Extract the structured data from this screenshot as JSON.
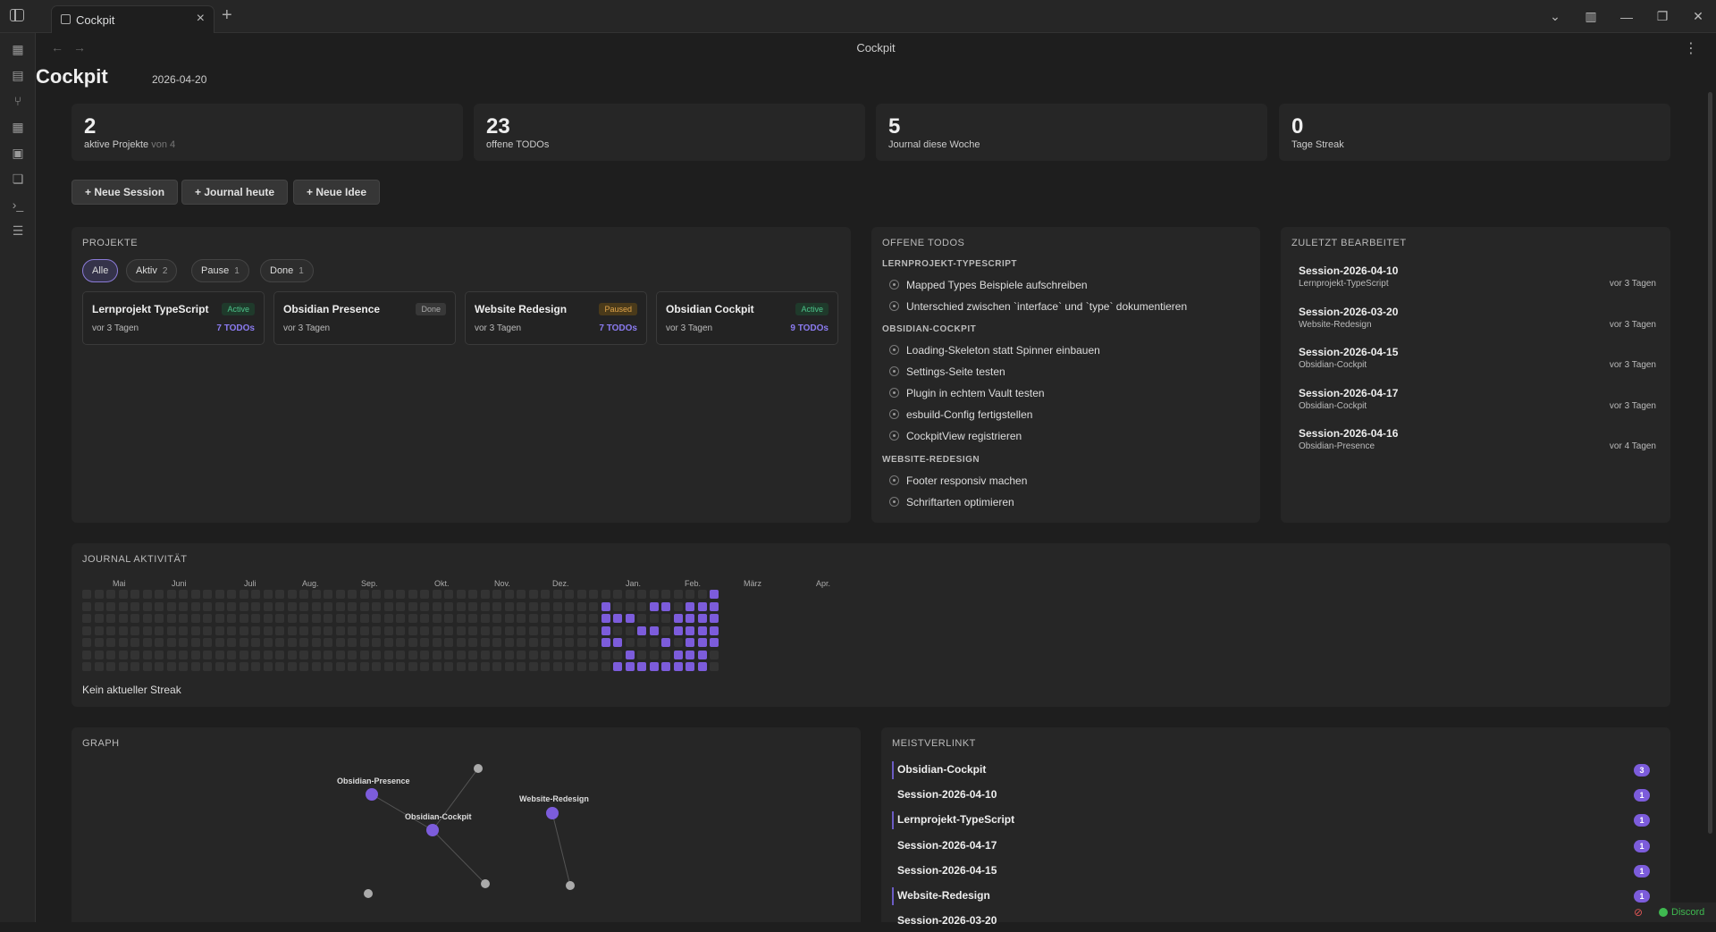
{
  "tab": {
    "label": "Cockpit"
  },
  "view": {
    "title": "Cockpit"
  },
  "page": {
    "title": "Cockpit",
    "date": "2026-04-20"
  },
  "stats": [
    {
      "value": "2",
      "label": "aktive Projekte",
      "sub": "von 4"
    },
    {
      "value": "23",
      "label": "offene TODOs",
      "sub": ""
    },
    {
      "value": "5",
      "label": "Journal diese Woche",
      "sub": ""
    },
    {
      "value": "0",
      "label": "Tage Streak",
      "sub": ""
    }
  ],
  "actions": {
    "new_session": "+ Neue Session",
    "journal_today": "+ Journal heute",
    "new_idea": "+ Neue Idee"
  },
  "projects": {
    "heading": "Projekte",
    "filters": [
      {
        "label": "Alle",
        "count": ""
      },
      {
        "label": "Aktiv",
        "count": "2"
      },
      {
        "label": "Pause",
        "count": "1"
      },
      {
        "label": "Done",
        "count": "1"
      }
    ],
    "items": [
      {
        "name": "Lernprojekt TypeScript",
        "status": "Active",
        "time": "vor 3 Tagen",
        "todos": "7 TODOs"
      },
      {
        "name": "Obsidian Presence",
        "status": "Done",
        "time": "vor 3 Tagen",
        "todos": ""
      },
      {
        "name": "Website Redesign",
        "status": "Paused",
        "time": "vor 3 Tagen",
        "todos": "7 TODOs"
      },
      {
        "name": "Obsidian Cockpit",
        "status": "Active",
        "time": "vor 3 Tagen",
        "todos": "9 TODOs"
      }
    ]
  },
  "todos": {
    "heading": "Offene TODOs",
    "groups": [
      {
        "name": "LERNPROJEKT-TYPESCRIPT",
        "items": [
          "Mapped Types Beispiele aufschreiben",
          "Unterschied zwischen `interface` und `type` dokumentieren"
        ]
      },
      {
        "name": "OBSIDIAN-COCKPIT",
        "items": [
          "Loading-Skeleton statt Spinner einbauen",
          "Settings-Seite testen",
          "Plugin in echtem Vault testen",
          "esbuild-Config fertigstellen",
          "CockpitView registrieren"
        ]
      },
      {
        "name": "WEBSITE-REDESIGN",
        "items": [
          "Footer responsiv machen",
          "Schriftarten optimieren"
        ]
      }
    ]
  },
  "recent": {
    "heading": "Zuletzt bearbeitet",
    "items": [
      {
        "name": "Session-2026-04-10",
        "project": "Lernprojekt-TypeScript",
        "time": "vor 3 Tagen"
      },
      {
        "name": "Session-2026-03-20",
        "project": "Website-Redesign",
        "time": "vor 3 Tagen"
      },
      {
        "name": "Session-2026-04-15",
        "project": "Obsidian-Cockpit",
        "time": "vor 3 Tagen"
      },
      {
        "name": "Session-2026-04-17",
        "project": "Obsidian-Cockpit",
        "time": "vor 3 Tagen"
      },
      {
        "name": "Session-2026-04-16",
        "project": "Obsidian-Presence",
        "time": "vor 4 Tagen"
      }
    ]
  },
  "journal": {
    "heading": "Journal Aktivität",
    "months": [
      "Mai",
      "Juni",
      "Juli",
      "Aug.",
      "Sep.",
      "Okt.",
      "Nov.",
      "Dez.",
      "Jan.",
      "Feb.",
      "März",
      "Apr."
    ],
    "streak_text": "Kein aktueller Streak",
    "active_cells": [
      [
        49,
        1
      ],
      [
        49,
        2
      ],
      [
        49,
        3
      ],
      [
        49,
        4
      ],
      [
        50,
        6
      ],
      [
        50,
        4
      ],
      [
        50,
        2
      ],
      [
        51,
        6
      ],
      [
        51,
        5
      ],
      [
        51,
        2
      ],
      [
        52,
        6
      ],
      [
        52,
        3
      ],
      [
        53,
        6
      ],
      [
        53,
        1
      ],
      [
        53,
        3
      ],
      [
        54,
        6
      ],
      [
        54,
        1
      ],
      [
        54,
        4
      ],
      [
        55,
        6
      ],
      [
        55,
        2
      ],
      [
        55,
        3
      ],
      [
        55,
        5
      ],
      [
        56,
        6
      ],
      [
        56,
        1
      ],
      [
        56,
        2
      ],
      [
        56,
        3
      ],
      [
        56,
        4
      ],
      [
        56,
        5
      ],
      [
        57,
        6
      ],
      [
        57,
        1
      ],
      [
        57,
        2
      ],
      [
        57,
        3
      ],
      [
        57,
        4
      ],
      [
        57,
        5
      ],
      [
        58,
        0
      ],
      [
        58,
        1
      ],
      [
        58,
        2
      ],
      [
        58,
        3
      ],
      [
        58,
        4
      ]
    ]
  },
  "graph": {
    "heading": "Graph",
    "nodes": [
      {
        "label": "Obsidian-Presence"
      },
      {
        "label": "Obsidian-Cockpit"
      },
      {
        "label": "Website-Redesign"
      }
    ]
  },
  "linked": {
    "heading": "Meistverlinkt",
    "items": [
      {
        "name": "Obsidian-Cockpit",
        "count": "3",
        "bar": true
      },
      {
        "name": "Session-2026-04-10",
        "count": "1",
        "bar": false
      },
      {
        "name": "Lernprojekt-TypeScript",
        "count": "1",
        "bar": true
      },
      {
        "name": "Session-2026-04-17",
        "count": "1",
        "bar": false
      },
      {
        "name": "Session-2026-04-15",
        "count": "1",
        "bar": false
      },
      {
        "name": "Website-Redesign",
        "count": "1",
        "bar": true
      },
      {
        "name": "Session-2026-03-20",
        "count": "",
        "bar": false
      }
    ]
  },
  "statusbar": {
    "label": "Discord"
  }
}
